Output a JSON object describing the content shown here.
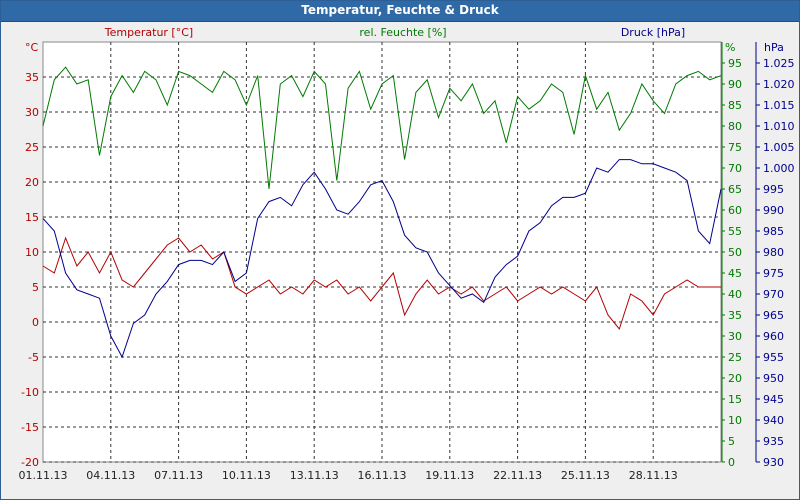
{
  "window": {
    "title": "Temperatur, Feuchte & Druck"
  },
  "colors": {
    "temperature": "#b30000",
    "humidity": "#007a00",
    "pressure": "#00008c",
    "grid": "#333333",
    "axis": "#222222"
  },
  "axes": {
    "x_ticks": [
      "01.11.13",
      "04.11.13",
      "07.11.13",
      "10.11.13",
      "13.11.13",
      "16.11.13",
      "19.11.13",
      "22.11.13",
      "25.11.13",
      "28.11.13"
    ],
    "temperature": {
      "label": "Temperatur [°C]",
      "unit": "°C",
      "min": -20,
      "max": 40,
      "ticks": [
        "-20",
        "-15",
        "-10",
        "-5",
        "0",
        "5",
        "10",
        "15",
        "20",
        "25",
        "30",
        "35"
      ]
    },
    "humidity": {
      "label": "rel. Feuchte [%]",
      "unit": "%",
      "min": 0,
      "max": 100,
      "ticks": [
        "0",
        "5",
        "10",
        "15",
        "20",
        "25",
        "30",
        "35",
        "40",
        "45",
        "50",
        "55",
        "60",
        "65",
        "70",
        "75",
        "80",
        "85",
        "90",
        "95"
      ]
    },
    "pressure": {
      "label": "Druck [hPa]",
      "unit": "hPa",
      "min": 930,
      "max": 1030,
      "ticks": [
        "930",
        "935",
        "940",
        "945",
        "950",
        "955",
        "960",
        "965",
        "970",
        "975",
        "980",
        "985",
        "990",
        "995",
        "1.000",
        "1.005",
        "1.010",
        "1.015",
        "1.020",
        "1.025"
      ]
    }
  },
  "chart_data": {
    "type": "line",
    "x_range_days": [
      0,
      30
    ],
    "grid": true,
    "series": [
      {
        "name": "Temperatur [°C]",
        "axis": "temperature",
        "x": [
          0,
          0.5,
          1,
          1.5,
          2,
          2.5,
          3,
          3.5,
          4,
          4.5,
          5,
          5.5,
          6,
          6.5,
          7,
          7.5,
          8,
          8.5,
          9,
          9.5,
          10,
          10.5,
          11,
          11.5,
          12,
          12.5,
          13,
          13.5,
          14,
          14.5,
          15,
          15.5,
          16,
          16.5,
          17,
          17.5,
          18,
          18.5,
          19,
          19.5,
          20,
          20.5,
          21,
          21.5,
          22,
          22.5,
          23,
          23.5,
          24,
          24.5,
          25,
          25.5,
          26,
          26.5,
          27,
          27.5,
          28,
          28.5,
          29,
          29.5,
          30
        ],
        "values": [
          8,
          7,
          12,
          8,
          10,
          7,
          10,
          6,
          5,
          7,
          9,
          11,
          12,
          10,
          11,
          9,
          10,
          5,
          4,
          5,
          6,
          4,
          5,
          4,
          6,
          5,
          6,
          4,
          5,
          3,
          5,
          7,
          1,
          4,
          6,
          4,
          5,
          4,
          5,
          3,
          4,
          5,
          3,
          4,
          5,
          4,
          5,
          4,
          3,
          5,
          1,
          -1,
          4,
          3,
          1,
          4,
          5,
          6,
          5,
          5,
          5
        ]
      },
      {
        "name": "rel. Feuchte [%]",
        "axis": "humidity",
        "x": [
          0,
          0.5,
          1,
          1.5,
          2,
          2.5,
          3,
          3.5,
          4,
          4.5,
          5,
          5.5,
          6,
          6.5,
          7,
          7.5,
          8,
          8.5,
          9,
          9.5,
          10,
          10.5,
          11,
          11.5,
          12,
          12.5,
          13,
          13.5,
          14,
          14.5,
          15,
          15.5,
          16,
          16.5,
          17,
          17.5,
          18,
          18.5,
          19,
          19.5,
          20,
          20.5,
          21,
          21.5,
          22,
          22.5,
          23,
          23.5,
          24,
          24.5,
          25,
          25.5,
          26,
          26.5,
          27,
          27.5,
          28,
          28.5,
          29,
          29.5,
          30
        ],
        "values": [
          80,
          91,
          94,
          90,
          91,
          73,
          87,
          92,
          88,
          93,
          91,
          85,
          93,
          92,
          90,
          88,
          93,
          91,
          85,
          92,
          65,
          90,
          92,
          87,
          93,
          90,
          67,
          89,
          93,
          84,
          90,
          92,
          72,
          88,
          91,
          82,
          89,
          86,
          90,
          83,
          86,
          76,
          87,
          84,
          86,
          90,
          88,
          78,
          92,
          84,
          88,
          79,
          83,
          90,
          86,
          83,
          90,
          92,
          93,
          91,
          92
        ]
      },
      {
        "name": "Druck [hPa]",
        "axis": "pressure",
        "x": [
          0,
          0.5,
          1,
          1.5,
          2,
          2.5,
          3,
          3.5,
          4,
          4.5,
          5,
          5.5,
          6,
          6.5,
          7,
          7.5,
          8,
          8.5,
          9,
          9.5,
          10,
          10.5,
          11,
          11.5,
          12,
          12.5,
          13,
          13.5,
          14,
          14.5,
          15,
          15.5,
          16,
          16.5,
          17,
          17.5,
          18,
          18.5,
          19,
          19.5,
          20,
          20.5,
          21,
          21.5,
          22,
          22.5,
          23,
          23.5,
          24,
          24.5,
          25,
          25.5,
          26,
          26.5,
          27,
          27.5,
          28,
          28.5,
          29,
          29.5,
          30
        ],
        "values": [
          988,
          985,
          975,
          971,
          970,
          969,
          960,
          955,
          963,
          965,
          970,
          973,
          977,
          978,
          978,
          977,
          980,
          973,
          975,
          988,
          992,
          993,
          991,
          996,
          999,
          995,
          990,
          989,
          992,
          996,
          997,
          992,
          984,
          981,
          980,
          975,
          972,
          969,
          970,
          968,
          974,
          977,
          979,
          985,
          987,
          991,
          993,
          993,
          994,
          1000,
          999,
          1002,
          1002,
          1001,
          1001,
          1000,
          999,
          997,
          985,
          982,
          995
        ]
      }
    ]
  }
}
